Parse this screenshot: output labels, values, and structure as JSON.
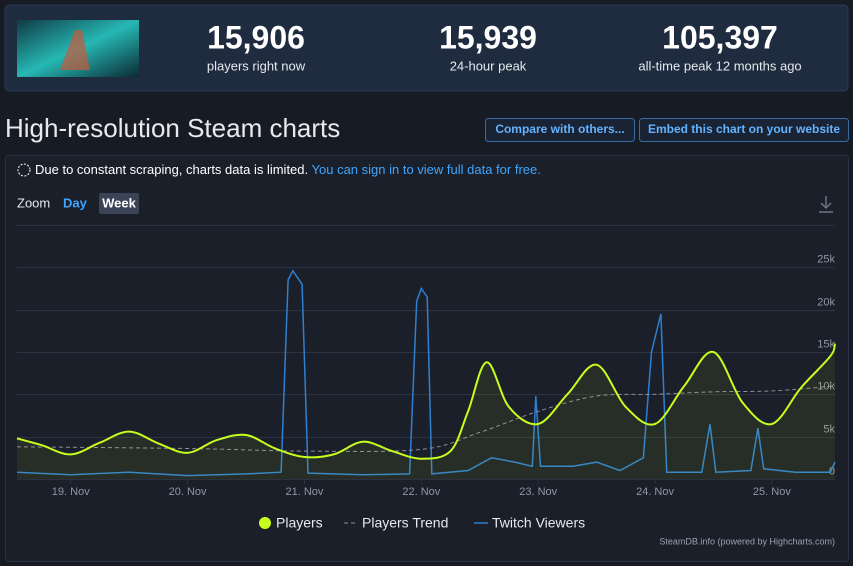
{
  "header": {
    "stats": [
      {
        "value": "15,906",
        "label": "players right now"
      },
      {
        "value": "15,939",
        "label": "24-hour peak"
      },
      {
        "value": "105,397",
        "label": "all-time peak 12 months ago"
      }
    ]
  },
  "title": "High-resolution Steam charts",
  "buttons": [
    "Compare with others...",
    "Embed this chart on your website"
  ],
  "notice": {
    "text": "Due to constant scraping, charts data is limited.",
    "link": "You can sign in to view full data for free."
  },
  "zoom": {
    "label": "Zoom",
    "options": [
      "Day",
      "Week"
    ]
  },
  "chart_data": {
    "type": "line",
    "xlim": [
      18.54,
      25.54
    ],
    "xticks": [
      {
        "value": 19,
        "label": "19. Nov"
      },
      {
        "value": 20,
        "label": "20. Nov"
      },
      {
        "value": 21,
        "label": "21. Nov"
      },
      {
        "value": 22,
        "label": "22. Nov"
      },
      {
        "value": 23,
        "label": "23. Nov"
      },
      {
        "value": 24,
        "label": "24. Nov"
      },
      {
        "value": 25,
        "label": "25. Nov"
      }
    ],
    "ylim": [
      0,
      30000
    ],
    "yticks": [
      0,
      {
        "value": 5000,
        "label": "5k"
      },
      {
        "value": 10000,
        "label": "10k"
      },
      {
        "value": 15000,
        "label": "15k"
      },
      {
        "value": 20000,
        "label": "20k"
      },
      {
        "value": 25000,
        "label": "25k"
      }
    ],
    "grid": true,
    "series": [
      {
        "name": "Players",
        "color": "#c6ff1e",
        "area": true,
        "curve": "spline",
        "x": [
          18.54,
          18.75,
          19,
          19.25,
          19.5,
          19.75,
          20,
          20.25,
          20.5,
          20.75,
          21,
          21.25,
          21.5,
          21.75,
          22,
          22.25,
          22.4,
          22.56,
          22.75,
          23,
          23.25,
          23.5,
          23.75,
          24,
          24.25,
          24.5,
          24.75,
          25,
          25.25,
          25.5,
          25.54
        ],
        "values": [
          4800,
          4000,
          2900,
          4300,
          5600,
          4200,
          3100,
          4600,
          5200,
          3600,
          2600,
          2900,
          4400,
          3300,
          2400,
          3300,
          8000,
          13800,
          8500,
          6500,
          10000,
          13500,
          8500,
          6500,
          11000,
          15000,
          9000,
          6500,
          10800,
          14500,
          16000
        ]
      },
      {
        "name": "Players Trend",
        "color": "#8a8f99",
        "dash": true,
        "curve": "spline",
        "x": [
          18.54,
          20,
          21,
          22,
          22.5,
          23,
          23.5,
          24,
          24.5,
          25,
          25.54
        ],
        "values": [
          3800,
          3600,
          3300,
          3500,
          5500,
          8000,
          9800,
          10000,
          10300,
          10400,
          11000
        ]
      },
      {
        "name": "Twitch Viewers",
        "color": "#2f7fd0",
        "x": [
          18.54,
          19,
          19.5,
          20,
          20.5,
          20.8,
          20.86,
          20.9,
          20.98,
          21.03,
          21.5,
          21.9,
          21.96,
          22,
          22.05,
          22.09,
          22.4,
          22.6,
          22.8,
          22.95,
          22.98,
          23.02,
          23.3,
          23.5,
          23.7,
          23.9,
          23.97,
          24.05,
          24.1,
          24.4,
          24.47,
          24.52,
          24.82,
          24.88,
          24.93,
          25.2,
          25.5,
          25.54
        ],
        "values": [
          800,
          500,
          800,
          400,
          600,
          800,
          23500,
          24600,
          23000,
          700,
          500,
          600,
          21000,
          22500,
          21500,
          600,
          1000,
          2500,
          2000,
          1500,
          9800,
          1500,
          1500,
          2000,
          1000,
          2500,
          15000,
          19500,
          800,
          800,
          6500,
          800,
          1000,
          6000,
          1200,
          800,
          800,
          2000
        ]
      }
    ]
  },
  "credit": "SteamDB.info (powered by Highcharts.com)"
}
